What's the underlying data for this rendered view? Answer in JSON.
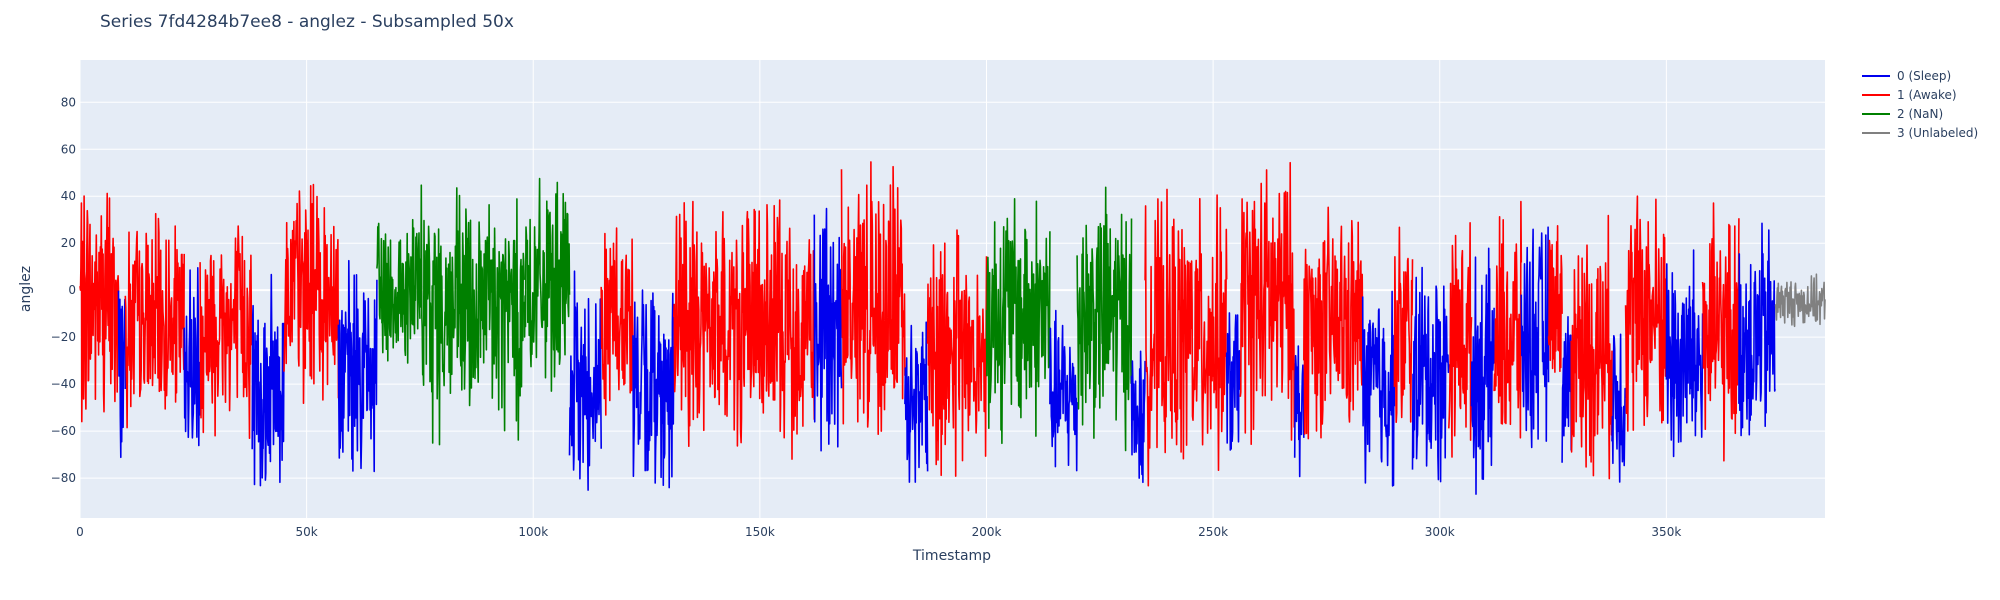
{
  "chart_data": {
    "type": "line",
    "title": "Series 7fd4284b7ee8 - anglez - Subsampled 50x",
    "xlabel": "Timestamp",
    "ylabel": "anglez",
    "xlim": [
      0,
      385000
    ],
    "ylim": [
      -97,
      98
    ],
    "x_ticks": [
      0,
      50000,
      100000,
      150000,
      200000,
      250000,
      300000,
      350000
    ],
    "x_tick_labels": [
      "0",
      "50k",
      "100k",
      "150k",
      "200k",
      "250k",
      "300k",
      "350k"
    ],
    "y_ticks": [
      80,
      60,
      40,
      20,
      0,
      -20,
      -40,
      -60,
      -80
    ],
    "y_tick_labels": [
      "80",
      "60",
      "40",
      "20",
      "0",
      "−20",
      "−40",
      "−60",
      "−80"
    ],
    "grid": true,
    "legend_position": "top-right outside",
    "series": [
      {
        "name": "0 (Sleep)",
        "color": "#0000ee"
      },
      {
        "name": "1 (Awake)",
        "color": "#ff0000"
      },
      {
        "name": "2 (NaN)",
        "color": "#008000"
      },
      {
        "name": "3 (Unlabeled)",
        "color": "#808080"
      }
    ],
    "segments": [
      {
        "series": 1,
        "x_start": 0,
        "x_end": 8500,
        "center": -5,
        "spread": 60
      },
      {
        "series": 0,
        "x_start": 8500,
        "x_end": 10000,
        "center": -30,
        "spread": 55
      },
      {
        "series": 1,
        "x_start": 10000,
        "x_end": 23000,
        "center": -15,
        "spread": 50
      },
      {
        "series": 0,
        "x_start": 23000,
        "x_end": 26500,
        "center": -30,
        "spread": 55
      },
      {
        "series": 1,
        "x_start": 26500,
        "x_end": 38000,
        "center": -15,
        "spread": 55
      },
      {
        "series": 0,
        "x_start": 38000,
        "x_end": 45000,
        "center": -40,
        "spread": 50
      },
      {
        "series": 1,
        "x_start": 45000,
        "x_end": 57000,
        "center": 0,
        "spread": 55
      },
      {
        "series": 0,
        "x_start": 57000,
        "x_end": 65500,
        "center": -35,
        "spread": 50
      },
      {
        "series": 2,
        "x_start": 65500,
        "x_end": 75000,
        "center": 0,
        "spread": 40
      },
      {
        "series": 2,
        "x_start": 75000,
        "x_end": 98000,
        "center": -10,
        "spread": 60
      },
      {
        "series": 2,
        "x_start": 98000,
        "x_end": 108000,
        "center": 0,
        "spread": 50
      },
      {
        "series": 0,
        "x_start": 108000,
        "x_end": 115000,
        "center": -40,
        "spread": 50
      },
      {
        "series": 1,
        "x_start": 115000,
        "x_end": 122000,
        "center": -10,
        "spread": 50
      },
      {
        "series": 0,
        "x_start": 122000,
        "x_end": 131000,
        "center": -40,
        "spread": 50
      },
      {
        "series": 1,
        "x_start": 131000,
        "x_end": 162000,
        "center": -15,
        "spread": 60
      },
      {
        "series": 0,
        "x_start": 162000,
        "x_end": 168000,
        "center": -20,
        "spread": 70
      },
      {
        "series": 1,
        "x_start": 168000,
        "x_end": 182000,
        "center": -5,
        "spread": 65
      },
      {
        "series": 0,
        "x_start": 182000,
        "x_end": 187000,
        "center": -45,
        "spread": 45
      },
      {
        "series": 1,
        "x_start": 187000,
        "x_end": 200000,
        "center": -25,
        "spread": 60
      },
      {
        "series": 2,
        "x_start": 200000,
        "x_end": 214000,
        "center": -10,
        "spread": 60
      },
      {
        "series": 0,
        "x_start": 214000,
        "x_end": 220000,
        "center": -45,
        "spread": 40
      },
      {
        "series": 2,
        "x_start": 220000,
        "x_end": 232000,
        "center": -10,
        "spread": 60
      },
      {
        "series": 0,
        "x_start": 232000,
        "x_end": 235000,
        "center": -55,
        "spread": 35
      },
      {
        "series": 1,
        "x_start": 235000,
        "x_end": 253000,
        "center": -20,
        "spread": 65
      },
      {
        "series": 0,
        "x_start": 253000,
        "x_end": 256000,
        "center": -40,
        "spread": 40
      },
      {
        "series": 1,
        "x_start": 256000,
        "x_end": 268000,
        "center": -5,
        "spread": 65
      },
      {
        "series": 0,
        "x_start": 268000,
        "x_end": 270000,
        "center": -50,
        "spread": 40
      },
      {
        "series": 1,
        "x_start": 270000,
        "x_end": 283000,
        "center": -15,
        "spread": 55
      },
      {
        "series": 0,
        "x_start": 283000,
        "x_end": 290000,
        "center": -40,
        "spread": 50
      },
      {
        "series": 1,
        "x_start": 290000,
        "x_end": 294000,
        "center": -20,
        "spread": 55
      },
      {
        "series": 0,
        "x_start": 294000,
        "x_end": 302000,
        "center": -35,
        "spread": 55
      },
      {
        "series": 1,
        "x_start": 302000,
        "x_end": 307000,
        "center": -20,
        "spread": 55
      },
      {
        "series": 0,
        "x_start": 307000,
        "x_end": 312000,
        "center": -35,
        "spread": 55
      },
      {
        "series": 1,
        "x_start": 312000,
        "x_end": 318000,
        "center": -20,
        "spread": 60
      },
      {
        "series": 0,
        "x_start": 318000,
        "x_end": 324000,
        "center": -20,
        "spread": 55
      },
      {
        "series": 1,
        "x_start": 324000,
        "x_end": 327000,
        "center": -5,
        "spread": 40
      },
      {
        "series": 0,
        "x_start": 327000,
        "x_end": 329000,
        "center": -40,
        "spread": 40
      },
      {
        "series": 1,
        "x_start": 329000,
        "x_end": 338000,
        "center": -25,
        "spread": 60
      },
      {
        "series": 0,
        "x_start": 338000,
        "x_end": 341000,
        "center": -45,
        "spread": 45
      },
      {
        "series": 1,
        "x_start": 341000,
        "x_end": 350000,
        "center": -10,
        "spread": 60
      },
      {
        "series": 0,
        "x_start": 350000,
        "x_end": 358000,
        "center": -30,
        "spread": 55
      },
      {
        "series": 1,
        "x_start": 358000,
        "x_end": 366000,
        "center": -20,
        "spread": 60
      },
      {
        "series": 0,
        "x_start": 366000,
        "x_end": 374000,
        "center": -20,
        "spread": 55
      },
      {
        "series": 3,
        "x_start": 374000,
        "x_end": 385000,
        "center": -5,
        "spread": 12
      }
    ]
  }
}
